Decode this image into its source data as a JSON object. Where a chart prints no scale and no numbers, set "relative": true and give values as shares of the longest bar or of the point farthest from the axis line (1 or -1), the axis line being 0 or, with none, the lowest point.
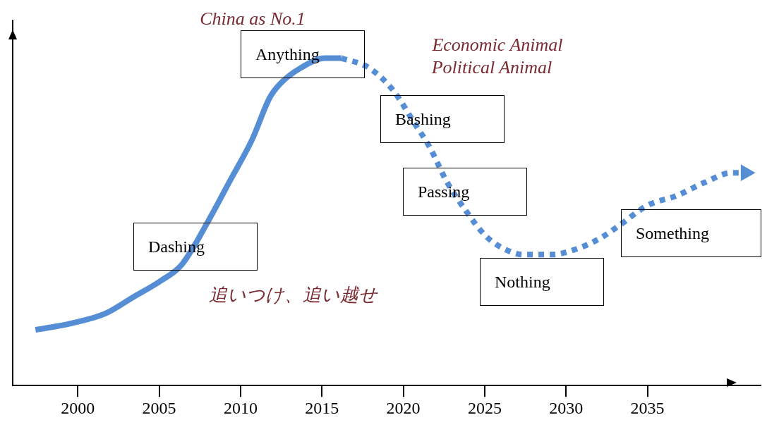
{
  "chart_data": {
    "type": "line",
    "relative": true,
    "xlim": [
      1996,
      2042
    ],
    "xticks": [
      2000,
      2005,
      2010,
      2015,
      2020,
      2025,
      2030,
      2035
    ],
    "series": [
      {
        "color": "#558ed5",
        "line_style": "solid",
        "x": [
          1997.4,
          1999.6,
          2001.7,
          2003.4,
          2005.1,
          2006.4,
          2008.1,
          2009.4,
          2010.7,
          2011.8,
          2012.4,
          2013.7,
          2015.2,
          2016.2
        ],
        "values": [
          0.17,
          0.19,
          0.22,
          0.27,
          0.32,
          0.37,
          0.51,
          0.63,
          0.75,
          0.88,
          0.92,
          0.97,
          1.0,
          1.0
        ]
      },
      {
        "color": "#558ed5",
        "line_style": "dotted",
        "x": [
          2016.2,
          2017.9,
          2019.4,
          2020.7,
          2021.6,
          2022.7,
          2023.9,
          2025.0,
          2026.1,
          2027.4,
          2029.1,
          2030.8,
          2032.1,
          2033.3,
          2035.0,
          2036.8,
          2038.5,
          2040.2,
          2041.2
        ],
        "values": [
          1.0,
          0.97,
          0.9,
          0.8,
          0.73,
          0.62,
          0.53,
          0.46,
          0.42,
          0.4,
          0.4,
          0.42,
          0.45,
          0.49,
          0.55,
          0.58,
          0.62,
          0.65,
          0.65
        ]
      }
    ],
    "annotations": [
      "China as No.1",
      "Economic Animal",
      "Political Animal",
      "追いつけ、追い越せ",
      "Anything",
      "Bashing",
      "Passing",
      "Dashing",
      "Nothing",
      "Something"
    ]
  }
}
